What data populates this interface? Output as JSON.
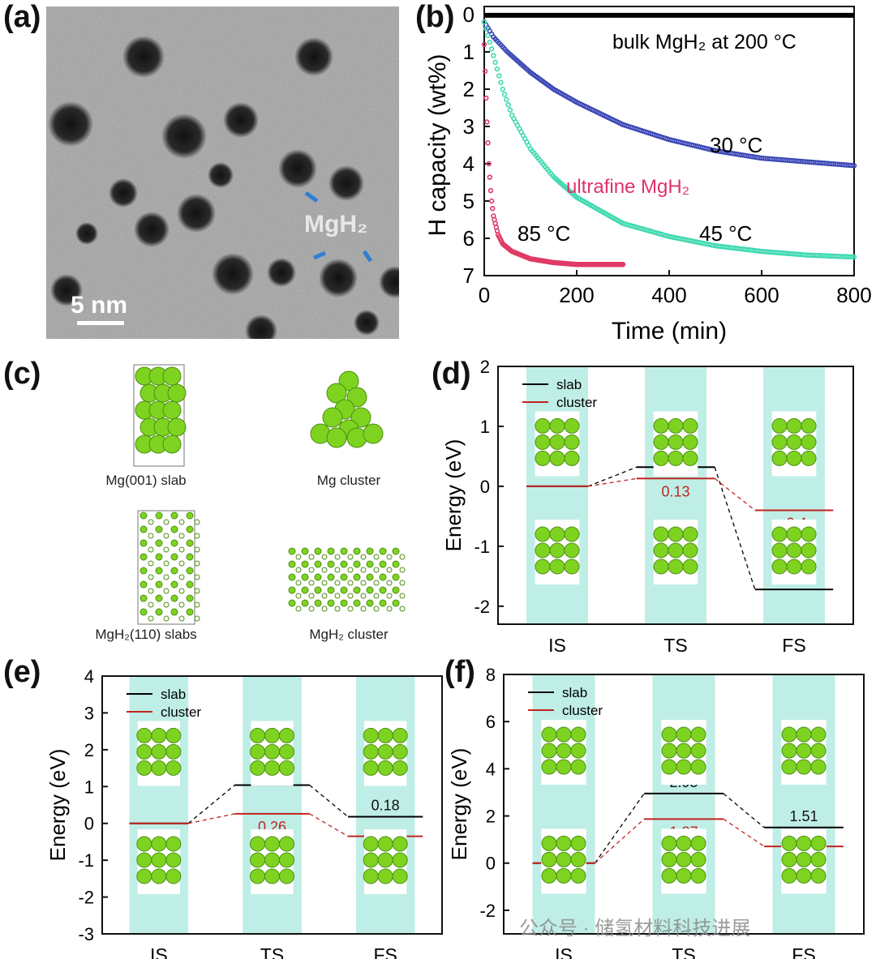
{
  "panel_labels": {
    "a": "(a)",
    "b": "(b)",
    "c": "(c)",
    "d": "(d)",
    "e": "(e)",
    "f": "(f)"
  },
  "tem": {
    "scale_bar": "5 nm",
    "particle_label": "MgH₂"
  },
  "structures": {
    "mg_slab": "Mg(001) slab",
    "mg_cluster": "Mg cluster",
    "mgh2_slabs": "MgH₂(110) slabs",
    "mgh2_cluster": "MgH₂ cluster"
  },
  "colors": {
    "bulk": "#000000",
    "t30": "#3a46b5",
    "t45": "#3ed9b0",
    "t85": "#e03a66",
    "ultrafine_text": "#e0336a",
    "slab_line": "#000000",
    "cluster_line": "#c0251f",
    "band": "#bfeee6",
    "mg_atom": "#7ed321",
    "h_atom": "#ffffff"
  },
  "watermark": "公众号 · 储氢材料科技进展",
  "chart_data": [
    {
      "panel": "b",
      "type": "line",
      "xlabel": "Time (min)",
      "ylabel": "H capacity (wt%)",
      "xlim": [
        0,
        800
      ],
      "ylim": [
        0,
        7
      ],
      "y_inverted": true,
      "xticks": [
        0,
        200,
        400,
        600,
        800
      ],
      "yticks": [
        0,
        1,
        2,
        3,
        4,
        5,
        6,
        7
      ],
      "annotations": {
        "bulk": "bulk MgH₂ at 200 °C",
        "t30": "30 °C",
        "t45": "45 °C",
        "t85": "85 °C",
        "ultrafine": "ultrafine MgH₂"
      },
      "series": [
        {
          "label_key": "bulk",
          "color_key": "bulk",
          "x": [
            0,
            100,
            200,
            300,
            400,
            500,
            600,
            700,
            800
          ],
          "y": [
            0.02,
            0.02,
            0.02,
            0.02,
            0.02,
            0.02,
            0.02,
            0.02,
            0.02
          ]
        },
        {
          "label_key": "t30",
          "color_key": "t30",
          "x": [
            0,
            20,
            50,
            100,
            150,
            200,
            300,
            400,
            500,
            600,
            700,
            800
          ],
          "y": [
            0.2,
            0.6,
            1.0,
            1.55,
            2.0,
            2.35,
            2.95,
            3.35,
            3.65,
            3.85,
            3.95,
            4.05
          ]
        },
        {
          "label_key": "t45",
          "color_key": "t45",
          "x": [
            0,
            20,
            40,
            60,
            100,
            150,
            200,
            300,
            400,
            500,
            600,
            700,
            800
          ],
          "y": [
            0.2,
            1.1,
            2.0,
            2.7,
            3.6,
            4.35,
            4.9,
            5.6,
            5.95,
            6.2,
            6.35,
            6.45,
            6.5
          ]
        },
        {
          "label_key": "t85",
          "color_key": "t85",
          "x": [
            0,
            5,
            10,
            15,
            20,
            30,
            40,
            60,
            100,
            150,
            200,
            250,
            300
          ],
          "y": [
            0.8,
            2.6,
            4.0,
            4.9,
            5.4,
            5.9,
            6.15,
            6.35,
            6.55,
            6.65,
            6.7,
            6.7,
            6.7
          ]
        }
      ]
    },
    {
      "panel": "d",
      "type": "energy_diagram",
      "ylabel": "Energy (eV)",
      "ylim": [
        -2.3,
        2
      ],
      "yticks": [
        -2,
        -1,
        0,
        1,
        2
      ],
      "states": [
        "IS",
        "TS",
        "FS"
      ],
      "series": [
        {
          "name": "slab",
          "color_key": "slab_line",
          "values": [
            0,
            0.32,
            -1.72
          ],
          "labels": [
            "",
            "0.32",
            "-1.72"
          ]
        },
        {
          "name": "cluster",
          "color_key": "cluster_line",
          "values": [
            0,
            0.13,
            -0.4
          ],
          "labels": [
            "",
            "0.13",
            "-0.4"
          ]
        }
      ]
    },
    {
      "panel": "e",
      "type": "energy_diagram",
      "ylabel": "Energy (eV)",
      "ylim": [
        -3,
        4
      ],
      "yticks": [
        -3,
        -2,
        -1,
        0,
        1,
        2,
        3,
        4
      ],
      "states": [
        "IS",
        "TS",
        "FS"
      ],
      "series": [
        {
          "name": "slab",
          "color_key": "slab_line",
          "values": [
            0,
            1.04,
            0.18
          ],
          "labels": [
            "",
            "1.04",
            "0.18"
          ]
        },
        {
          "name": "cluster",
          "color_key": "cluster_line",
          "values": [
            0,
            0.26,
            -0.35
          ],
          "labels": [
            "",
            "0.26",
            "-0.35"
          ]
        }
      ]
    },
    {
      "panel": "f",
      "type": "energy_diagram",
      "ylabel": "Energy (eV)",
      "ylim": [
        -3,
        8
      ],
      "yticks": [
        -2,
        0,
        2,
        4,
        6,
        8
      ],
      "states": [
        "IS",
        "TS",
        "FS"
      ],
      "series": [
        {
          "name": "slab",
          "color_key": "slab_line",
          "values": [
            0,
            2.95,
            1.51
          ],
          "labels": [
            "",
            "2.95",
            "1.51"
          ]
        },
        {
          "name": "cluster",
          "color_key": "cluster_line",
          "values": [
            0,
            1.87,
            0.71
          ],
          "labels": [
            "",
            "1.87",
            "0.71"
          ]
        }
      ]
    }
  ]
}
